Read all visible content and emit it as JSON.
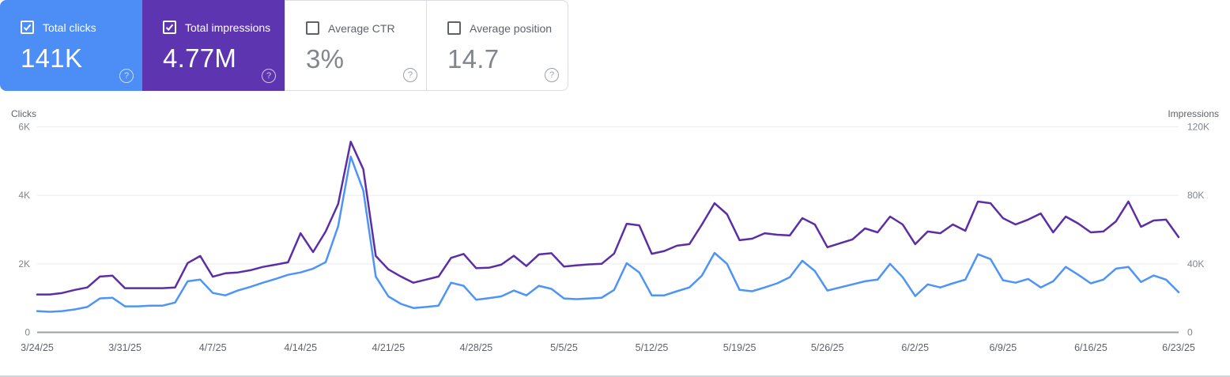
{
  "icons": {
    "help_glyph": "?"
  },
  "cards": [
    {
      "label": "Total clicks",
      "value": "141K",
      "checked": true,
      "style": "colored",
      "bg": "#4c8df6"
    },
    {
      "label": "Total impressions",
      "value": "4.77M",
      "checked": true,
      "style": "colored",
      "bg": "#5e35b1"
    },
    {
      "label": "Average CTR",
      "value": "3%",
      "checked": false,
      "style": "plain",
      "bg": "#ffffff"
    },
    {
      "label": "Average position",
      "value": "14.7",
      "checked": false,
      "style": "plain",
      "bg": "#ffffff"
    }
  ],
  "chart_data": {
    "type": "line",
    "grid": true,
    "left_axis": {
      "label": "Clicks",
      "ticks": [
        "0",
        "2K",
        "4K",
        "6K"
      ],
      "max": 6000
    },
    "right_axis": {
      "label": "Impressions",
      "ticks": [
        "0",
        "40K",
        "80K",
        "120K"
      ],
      "max": 120000
    },
    "x_tick_labels": [
      "3/24/25",
      "3/31/25",
      "4/7/25",
      "4/14/25",
      "4/21/25",
      "4/28/25",
      "5/5/25",
      "5/12/25",
      "5/19/25",
      "5/26/25",
      "6/2/25",
      "6/9/25",
      "6/16/25",
      "6/23/25"
    ],
    "dates": [
      "3/24/25",
      "3/25/25",
      "3/26/25",
      "3/27/25",
      "3/28/25",
      "3/29/25",
      "3/30/25",
      "3/31/25",
      "4/1/25",
      "4/2/25",
      "4/3/25",
      "4/4/25",
      "4/5/25",
      "4/6/25",
      "4/7/25",
      "4/8/25",
      "4/9/25",
      "4/10/25",
      "4/11/25",
      "4/12/25",
      "4/13/25",
      "4/14/25",
      "4/15/25",
      "4/16/25",
      "4/17/25",
      "4/18/25",
      "4/19/25",
      "4/20/25",
      "4/21/25",
      "4/22/25",
      "4/23/25",
      "4/24/25",
      "4/25/25",
      "4/26/25",
      "4/27/25",
      "4/28/25",
      "4/29/25",
      "4/30/25",
      "5/1/25",
      "5/2/25",
      "5/3/25",
      "5/4/25",
      "5/5/25",
      "5/6/25",
      "5/7/25",
      "5/8/25",
      "5/9/25",
      "5/10/25",
      "5/11/25",
      "5/12/25",
      "5/13/25",
      "5/14/25",
      "5/15/25",
      "5/16/25",
      "5/17/25",
      "5/18/25",
      "5/19/25",
      "5/20/25",
      "5/21/25",
      "5/22/25",
      "5/23/25",
      "5/24/25",
      "5/25/25",
      "5/26/25",
      "5/27/25",
      "5/28/25",
      "5/29/25",
      "5/30/25",
      "5/31/25",
      "6/1/25",
      "6/2/25",
      "6/3/25",
      "6/4/25",
      "6/5/25",
      "6/6/25",
      "6/7/25",
      "6/8/25",
      "6/9/25",
      "6/10/25",
      "6/11/25",
      "6/12/25",
      "6/13/25",
      "6/14/25",
      "6/15/25",
      "6/16/25",
      "6/17/25",
      "6/18/25",
      "6/19/25",
      "6/20/25",
      "6/21/25",
      "6/22/25",
      "6/23/25"
    ],
    "series": [
      {
        "name": "Impressions",
        "axis": "right",
        "color": "#5b2ea6",
        "values": [
          22100,
          22100,
          23000,
          24800,
          26200,
          32600,
          33100,
          25800,
          25800,
          25800,
          25800,
          26200,
          40500,
          44600,
          32500,
          34500,
          35000,
          36300,
          38200,
          39500,
          40900,
          57900,
          46900,
          58900,
          75000,
          111300,
          95200,
          44600,
          36800,
          32600,
          29000,
          30800,
          32600,
          43500,
          45800,
          37500,
          37700,
          39500,
          44700,
          38700,
          45500,
          46200,
          38400,
          39100,
          39700,
          40000,
          46000,
          63400,
          62500,
          45900,
          47500,
          50600,
          51500,
          63000,
          75400,
          69000,
          53800,
          54700,
          57900,
          57000,
          56600,
          66700,
          63000,
          49700,
          52000,
          54300,
          60700,
          58400,
          67600,
          63000,
          51500,
          58900,
          57900,
          63000,
          59300,
          76400,
          75400,
          66700,
          63000,
          65800,
          69400,
          58400,
          67600,
          63500,
          58400,
          58900,
          64800,
          76400,
          61600,
          65300,
          65800,
          55600
        ]
      },
      {
        "name": "Clicks",
        "axis": "left",
        "color": "#4e94f7",
        "values": [
          620,
          600,
          620,
          670,
          740,
          990,
          1010,
          760,
          760,
          780,
          780,
          870,
          1490,
          1540,
          1150,
          1080,
          1220,
          1330,
          1450,
          1560,
          1680,
          1750,
          1860,
          2050,
          3100,
          5130,
          4140,
          1630,
          1050,
          830,
          710,
          740,
          780,
          1450,
          1360,
          950,
          1000,
          1050,
          1220,
          1080,
          1360,
          1270,
          990,
          970,
          990,
          1010,
          1240,
          2020,
          1750,
          1080,
          1080,
          1200,
          1310,
          1660,
          2320,
          2000,
          1240,
          1200,
          1310,
          1430,
          1610,
          2090,
          1790,
          1220,
          1310,
          1400,
          1490,
          1540,
          2000,
          1610,
          1060,
          1400,
          1310,
          1430,
          1540,
          2280,
          2140,
          1520,
          1450,
          1560,
          1310,
          1490,
          1910,
          1680,
          1430,
          1540,
          1860,
          1910,
          1470,
          1660,
          1540,
          1170
        ]
      }
    ]
  }
}
